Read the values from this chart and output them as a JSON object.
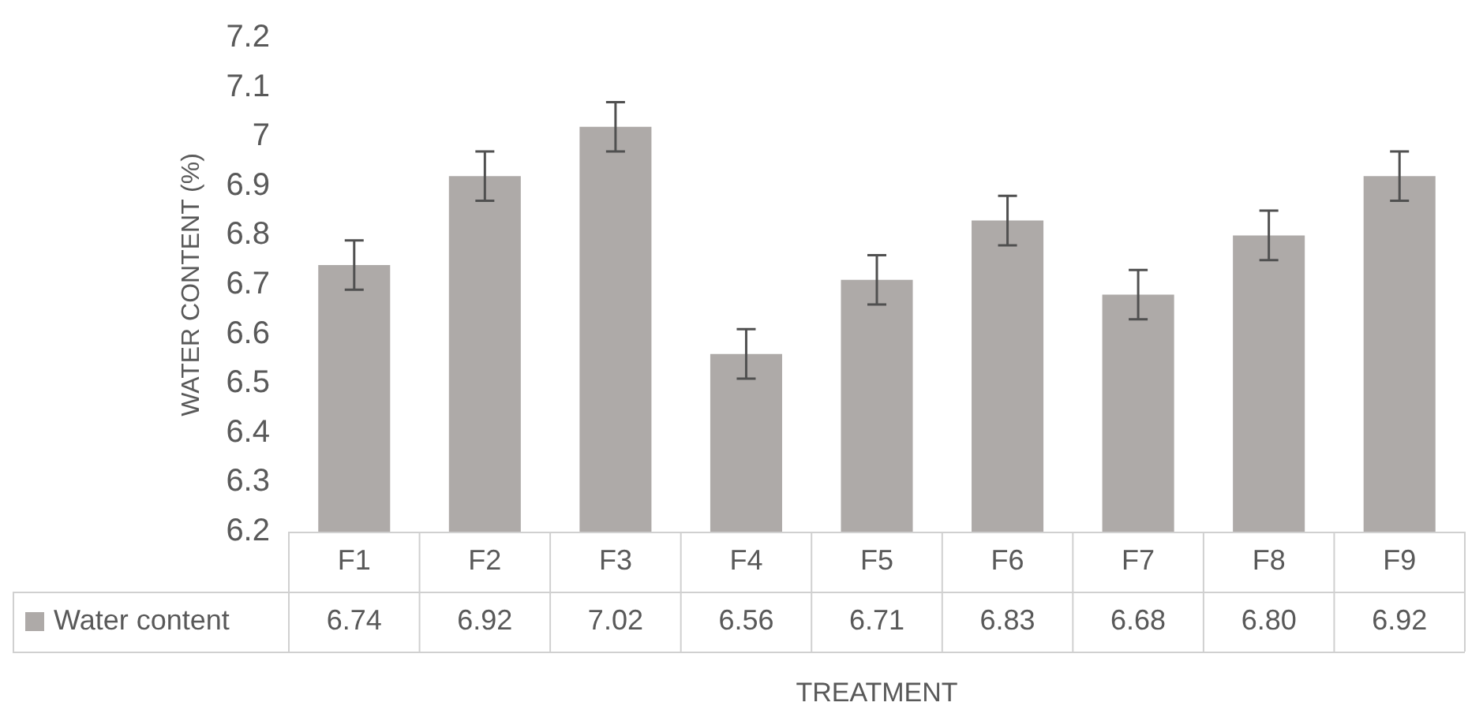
{
  "chart_data": {
    "type": "bar",
    "xlabel": "TREATMENT",
    "ylabel": "WATER CONTENT (%)",
    "categories": [
      "F1",
      "F2",
      "F3",
      "F4",
      "F5",
      "F6",
      "F7",
      "F8",
      "F9"
    ],
    "series": [
      {
        "name": "Water content",
        "color": "#aeaaa8",
        "values": [
          6.74,
          6.92,
          7.02,
          6.56,
          6.71,
          6.83,
          6.68,
          6.8,
          6.92
        ],
        "errors": [
          0.05,
          0.05,
          0.05,
          0.05,
          0.05,
          0.05,
          0.05,
          0.05,
          0.05
        ],
        "value_labels": [
          "6.74",
          "6.92",
          "7.02",
          "6.56",
          "6.71",
          "6.83",
          "6.68",
          "6.80",
          "6.92"
        ]
      }
    ],
    "ylim": [
      6.2,
      7.2
    ],
    "yticks": [
      6.2,
      6.3,
      6.4,
      6.5,
      6.6,
      6.7,
      6.8,
      6.9,
      7,
      7.1,
      7.2
    ],
    "grid": false
  }
}
